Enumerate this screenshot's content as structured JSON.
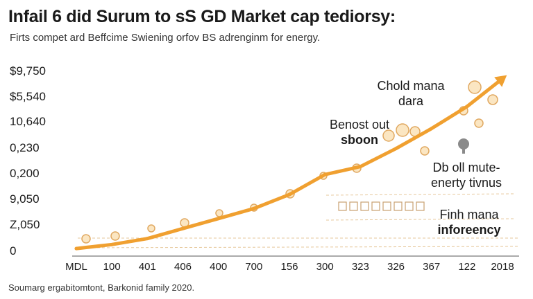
{
  "chart_data": {
    "type": "line",
    "title": "Infail 6 did Surum to sS GD Market cap tediorsy:",
    "subtitle": "Firts compet ard Beffcime Swiening orfov BS adrenginm for energy.",
    "source": "Soumarg ergabitomtont, Barkonid family 2020.",
    "xlabel": "",
    "ylabel": "",
    "y_tick_labels": [
      "$9,750",
      "$5,540",
      "10,640",
      "0,230",
      "0,200",
      "9,050",
      "Z,050",
      "0"
    ],
    "x_tick_labels": [
      "MDL",
      "100",
      "401",
      "406",
      "400",
      "700",
      "156",
      "300",
      "323",
      "326",
      "367",
      "122",
      "2018"
    ],
    "grid": false,
    "series": [
      {
        "color": "#F0A030",
        "values": [
          0.1,
          0.3,
          0.6,
          1.1,
          1.6,
          2.1,
          2.8,
          3.8,
          4.2,
          5.1,
          6.1,
          7.2,
          8.6
        ]
      }
    ],
    "ylim": [
      0,
      9
    ],
    "annotations": [
      {
        "lines": [
          "Chold mana",
          "dara"
        ],
        "bold_line": -1
      },
      {
        "lines": [
          "Benost out",
          "sboon"
        ],
        "bold_line": 1
      },
      {
        "lines": [
          "Db oll mute-",
          "enerty tivnus"
        ],
        "bold_line": -1
      },
      {
        "lines": [
          "Finh mana",
          "inforeency"
        ],
        "bold_line": 1
      }
    ]
  }
}
